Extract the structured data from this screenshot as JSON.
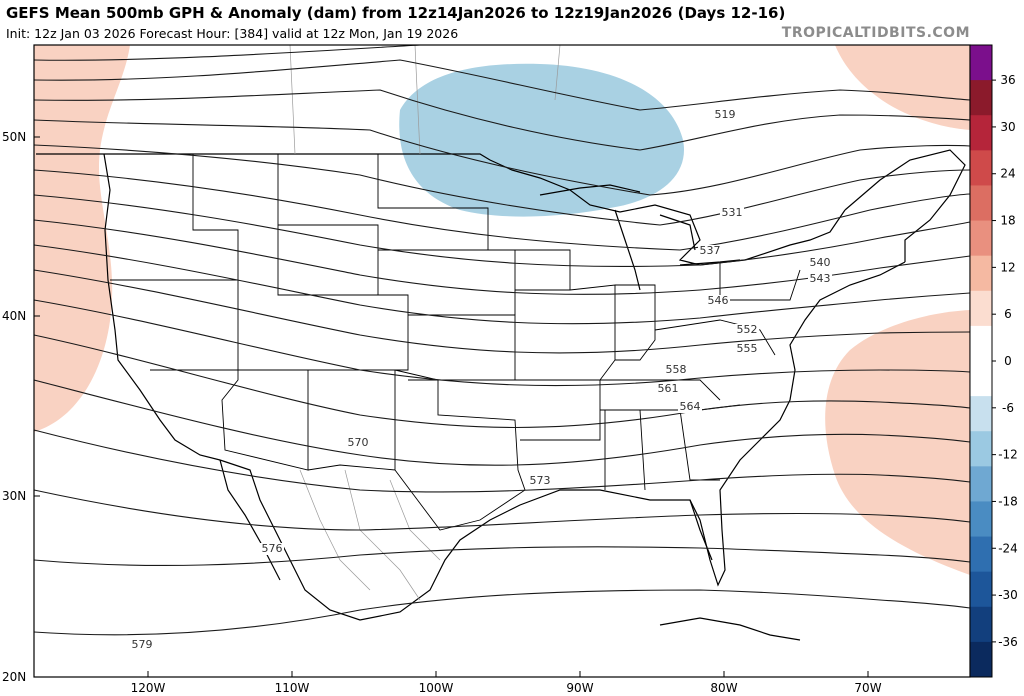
{
  "header": {
    "title": "GEFS Mean 500mb GPH & Anomaly (dam) from 12z14Jan2026 to 12z19Jan2026 (Days 12-16)",
    "subtitle": "Init: 12z Jan 03 2026   Forecast Hour: [384]   valid at 12z Mon, Jan 19 2026",
    "brand": "TROPICALTIDBITS.COM"
  },
  "map": {
    "lat_labels": [
      "50N",
      "40N",
      "30N",
      "20N"
    ],
    "lon_labels": [
      "120W",
      "110W",
      "100W",
      "90W",
      "80W",
      "70W"
    ],
    "contour_labels": [
      "519",
      "531",
      "537",
      "540",
      "543",
      "546",
      "552",
      "555",
      "558",
      "561",
      "564",
      "570",
      "573",
      "576",
      "579"
    ],
    "anomaly_colors": {
      "negative": "#a9d1e3",
      "positive": "#f9d2c2"
    }
  },
  "colorbar": {
    "ticks": [
      "36",
      "30",
      "24",
      "18",
      "12",
      "6",
      "0",
      "-6",
      "-12",
      "-18",
      "-24",
      "-30",
      "-36"
    ],
    "colors": [
      "#7b0f8c",
      "#8b1a2b",
      "#b5253a",
      "#cf4a4a",
      "#dc6e62",
      "#e9907f",
      "#f5b9a2",
      "#fbddd0",
      "#ffffff",
      "#ffffff",
      "#c8e0ee",
      "#9bc9e2",
      "#6fa8d2",
      "#4a8cc2",
      "#2f6fb0",
      "#1d569a",
      "#123f7d",
      "#0b2a5e"
    ]
  }
}
